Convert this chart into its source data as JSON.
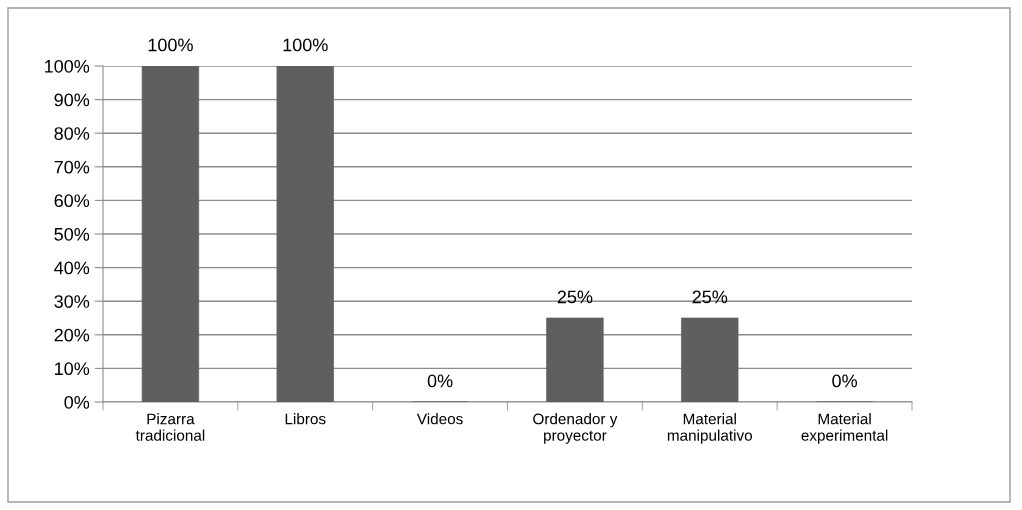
{
  "chart_data": {
    "type": "bar",
    "categories": [
      "Pizarra tradicional",
      "Libros",
      "Videos",
      "Ordenador y proyector",
      "Material manipulativo",
      "Material experimental"
    ],
    "values": [
      100,
      100,
      0,
      25,
      25,
      0
    ],
    "value_labels": [
      "100%",
      "100%",
      "0%",
      "25%",
      "25%",
      "0%"
    ],
    "color": "#5f5f5f",
    "ylim": [
      0,
      100
    ],
    "yticks": [
      {
        "value": 0,
        "label": "0%"
      },
      {
        "value": 10,
        "label": "10%"
      },
      {
        "value": 20,
        "label": "20%"
      },
      {
        "value": 30,
        "label": "30%"
      },
      {
        "value": 40,
        "label": "40%"
      },
      {
        "value": 50,
        "label": "50%"
      },
      {
        "value": 60,
        "label": "60%"
      },
      {
        "value": 70,
        "label": "70%"
      },
      {
        "value": 80,
        "label": "80%"
      },
      {
        "value": 90,
        "label": "90%"
      },
      {
        "value": 100,
        "label": "100%"
      }
    ],
    "grid": "y",
    "legend": false
  }
}
